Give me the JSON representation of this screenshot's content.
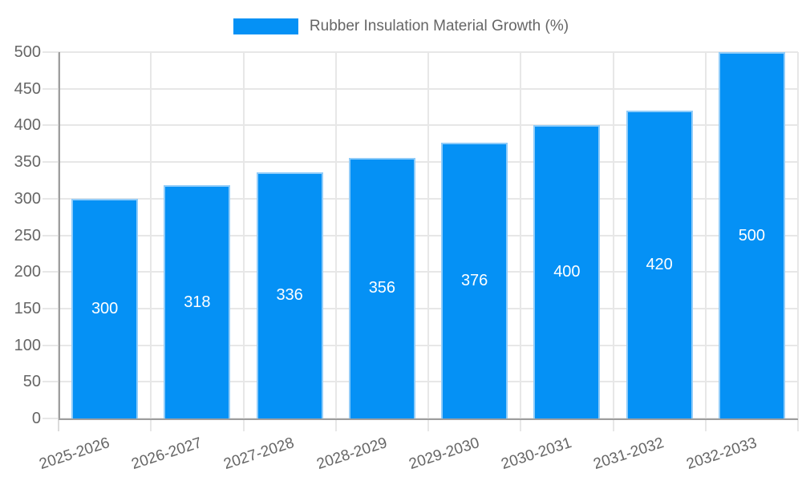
{
  "legend": {
    "label": "Rubber Insulation Material Growth (%)"
  },
  "chart_data": {
    "type": "bar",
    "title": "",
    "series_name": "Rubber Insulation Material Growth (%)",
    "categories": [
      "2025-2026",
      "2026-2027",
      "2027-2028",
      "2028-2029",
      "2029-2030",
      "2030-2031",
      "2031-2032",
      "2032-2033"
    ],
    "values": [
      300,
      318,
      336,
      356,
      376,
      400,
      420,
      500
    ],
    "value_labels": [
      "300",
      "318",
      "336",
      "356",
      "376",
      "400",
      "420",
      "500"
    ],
    "xlabel": "",
    "ylabel": "",
    "ylim": [
      0,
      500
    ],
    "ytick_step": 50,
    "yticks": [
      0,
      50,
      100,
      150,
      200,
      250,
      300,
      350,
      400,
      450,
      500
    ],
    "grid": true,
    "legend_position": "top",
    "colors": {
      "bar_fill": "#0591f5",
      "bar_border": "#90ccf9",
      "grid_line": "#e7e7e7",
      "axis_line": "#9e9e9e",
      "tick_mark": "#dcdcdc",
      "tick_label": "#666666",
      "value_label": "#ffffff"
    }
  }
}
